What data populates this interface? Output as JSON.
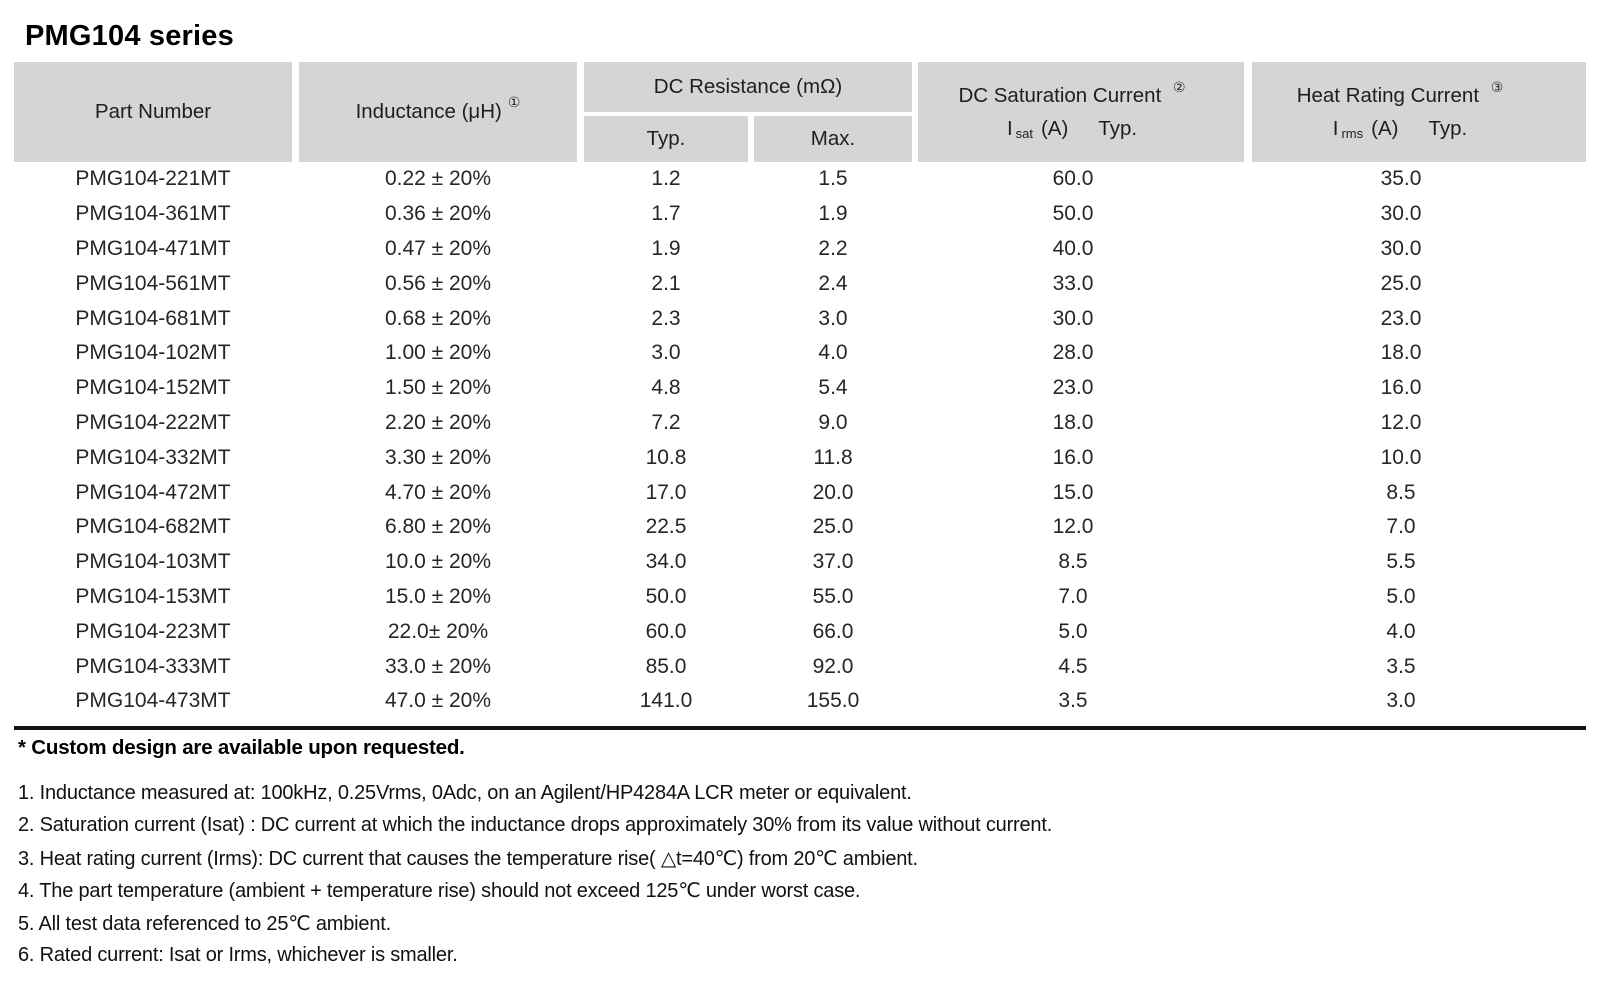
{
  "page": {
    "title": "PMG104 series"
  },
  "colors": {
    "header_bg": "#d5d5d5",
    "text": "#222222",
    "rule": "#141414"
  },
  "table": {
    "header": {
      "part_number": "Part Number",
      "inductance": "Inductance (μH)",
      "inductance_ref": "①",
      "dc_resistance": "DC Resistance (mΩ)",
      "dcr_typ": "Typ.",
      "dcr_max": "Max.",
      "saturation_title": "DC Saturation Current",
      "saturation_ref": "②",
      "saturation_symbol": "I",
      "saturation_subscript": "sat",
      "saturation_unit": "(A)",
      "saturation_qualifier": "Typ.",
      "heat_title": "Heat Rating Current",
      "heat_ref": "③",
      "heat_symbol": "I",
      "heat_subscript": "rms",
      "heat_unit": "(A)",
      "heat_qualifier": "Typ."
    },
    "rows": [
      {
        "part": "PMG104-221MT",
        "inductance": "0.22 ± 20%",
        "dcr_typ": "1.2",
        "dcr_max": "1.5",
        "isat": "60.0",
        "irms": "35.0"
      },
      {
        "part": "PMG104-361MT",
        "inductance": "0.36 ± 20%",
        "dcr_typ": "1.7",
        "dcr_max": "1.9",
        "isat": "50.0",
        "irms": "30.0"
      },
      {
        "part": "PMG104-471MT",
        "inductance": "0.47 ± 20%",
        "dcr_typ": "1.9",
        "dcr_max": "2.2",
        "isat": "40.0",
        "irms": "30.0"
      },
      {
        "part": "PMG104-561MT",
        "inductance": "0.56 ± 20%",
        "dcr_typ": "2.1",
        "dcr_max": "2.4",
        "isat": "33.0",
        "irms": "25.0"
      },
      {
        "part": "PMG104-681MT",
        "inductance": "0.68 ± 20%",
        "dcr_typ": "2.3",
        "dcr_max": "3.0",
        "isat": "30.0",
        "irms": "23.0"
      },
      {
        "part": "PMG104-102MT",
        "inductance": "1.00 ± 20%",
        "dcr_typ": "3.0",
        "dcr_max": "4.0",
        "isat": "28.0",
        "irms": "18.0"
      },
      {
        "part": "PMG104-152MT",
        "inductance": "1.50 ± 20%",
        "dcr_typ": "4.8",
        "dcr_max": "5.4",
        "isat": "23.0",
        "irms": "16.0"
      },
      {
        "part": "PMG104-222MT",
        "inductance": "2.20 ± 20%",
        "dcr_typ": "7.2",
        "dcr_max": "9.0",
        "isat": "18.0",
        "irms": "12.0"
      },
      {
        "part": "PMG104-332MT",
        "inductance": "3.30 ± 20%",
        "dcr_typ": "10.8",
        "dcr_max": "11.8",
        "isat": "16.0",
        "irms": "10.0"
      },
      {
        "part": "PMG104-472MT",
        "inductance": "4.70 ± 20%",
        "dcr_typ": "17.0",
        "dcr_max": "20.0",
        "isat": "15.0",
        "irms": "8.5"
      },
      {
        "part": "PMG104-682MT",
        "inductance": "6.80 ± 20%",
        "dcr_typ": "22.5",
        "dcr_max": "25.0",
        "isat": "12.0",
        "irms": "7.0"
      },
      {
        "part": "PMG104-103MT",
        "inductance": "10.0 ± 20%",
        "dcr_typ": "34.0",
        "dcr_max": "37.0",
        "isat": "8.5",
        "irms": "5.5"
      },
      {
        "part": "PMG104-153MT",
        "inductance": "15.0 ± 20%",
        "dcr_typ": "50.0",
        "dcr_max": "55.0",
        "isat": "7.0",
        "irms": "5.0"
      },
      {
        "part": "PMG104-223MT",
        "inductance": "22.0± 20%",
        "dcr_typ": "60.0",
        "dcr_max": "66.0",
        "isat": "5.0",
        "irms": "4.0"
      },
      {
        "part": "PMG104-333MT",
        "inductance": "33.0 ± 20%",
        "dcr_typ": "85.0",
        "dcr_max": "92.0",
        "isat": "4.5",
        "irms": "3.5"
      },
      {
        "part": "PMG104-473MT",
        "inductance": "47.0 ± 20%",
        "dcr_typ": "141.0",
        "dcr_max": "155.0",
        "isat": "3.5",
        "irms": "3.0"
      }
    ]
  },
  "footnotes": {
    "custom_note": "* Custom design are available upon requested.",
    "items": [
      "1. Inductance measured at: 100kHz, 0.25Vrms, 0Adc, on an Agilent/HP4284A LCR meter or equivalent.",
      "2. Saturation current (Isat) : DC current at which the inductance drops approximately 30% from its value without current.",
      "3. Heat rating current (Irms): DC current that causes the temperature rise( △t=40℃) from 20℃ ambient.",
      "4. The part temperature (ambient + temperature rise) should not exceed 125℃ under worst case.",
      "5. All test data referenced to 25℃ ambient.",
      "6. Rated current: Isat or Irms, whichever is smaller."
    ]
  }
}
